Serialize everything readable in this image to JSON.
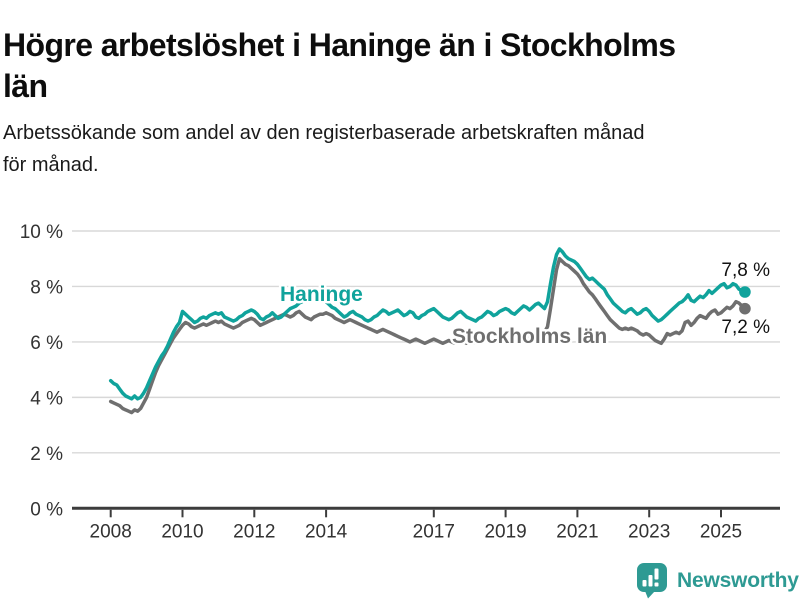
{
  "title": "Högre arbetslöshet i Haninge än i Stockholms län",
  "title_lines": [
    "Högre arbetslöshet i Haninge än i Stockholms",
    "län"
  ],
  "subtitle": "Arbetssökande som andel av den registerbaserade arbetskraften månad för månad.",
  "subtitle_lines": [
    "Arbetssökande som andel av den registerbaserade arbetskraften månad",
    "för månad."
  ],
  "footer": {
    "brand": "Newsworthy",
    "logo_icon": "newsworthy-bubble-bar-chart-icon"
  },
  "colors": {
    "haninge": "#10a39c",
    "stockholm": "#6f6f6f",
    "grid": "#d8d8d8",
    "axis": "#3c3c3c",
    "text": "#1a1a1a",
    "brand_teal": "#2e9a93"
  },
  "chart_data": {
    "type": "line",
    "x_start": "2008-01",
    "x_end": "2025-09",
    "x_interval": "monthly",
    "x_tick_years": [
      2008,
      2010,
      2012,
      2014,
      2017,
      2019,
      2021,
      2023,
      2025
    ],
    "x_tick_labels": [
      "2008",
      "2010",
      "2012",
      "2014",
      "2017",
      "2019",
      "2021",
      "2023",
      "2025"
    ],
    "y_ticks": [
      0,
      2,
      4,
      6,
      8,
      10
    ],
    "y_tick_labels": [
      "0 %",
      "2 %",
      "4 %",
      "6 %",
      "8 %",
      "10 %"
    ],
    "ylim": [
      0,
      10
    ],
    "grid": "horizontal",
    "legend_position": "inline-labels",
    "series": [
      {
        "name": "Haninge",
        "color": "#10a39c",
        "end_label": "7,8 %",
        "end_value": 7.8,
        "values": [
          4.6,
          4.5,
          4.45,
          4.3,
          4.15,
          4.05,
          4.0,
          3.95,
          4.05,
          3.95,
          4.0,
          4.15,
          4.35,
          4.6,
          4.85,
          5.1,
          5.3,
          5.5,
          5.65,
          5.85,
          6.1,
          6.35,
          6.55,
          6.7,
          7.1,
          7.0,
          6.9,
          6.8,
          6.7,
          6.75,
          6.85,
          6.9,
          6.85,
          6.95,
          7.0,
          7.05,
          7.0,
          7.05,
          6.9,
          6.85,
          6.8,
          6.75,
          6.8,
          6.9,
          6.95,
          7.05,
          7.1,
          7.15,
          7.1,
          7.0,
          6.85,
          6.8,
          6.9,
          6.95,
          7.05,
          6.95,
          6.85,
          6.9,
          7.0,
          7.1,
          7.2,
          7.25,
          7.3,
          7.4,
          7.45,
          7.55,
          7.6,
          7.65,
          7.7,
          7.65,
          7.6,
          7.5,
          7.45,
          7.35,
          7.25,
          7.2,
          7.1,
          7.0,
          6.9,
          6.95,
          7.05,
          7.1,
          7.0,
          6.95,
          6.9,
          6.8,
          6.75,
          6.8,
          6.9,
          6.95,
          7.05,
          7.15,
          7.1,
          7.0,
          7.05,
          7.1,
          7.15,
          7.05,
          6.95,
          7.0,
          7.1,
          7.05,
          6.9,
          6.85,
          6.95,
          7.0,
          7.1,
          7.15,
          7.2,
          7.1,
          7.0,
          6.9,
          6.85,
          6.8,
          6.85,
          6.95,
          7.05,
          7.1,
          7.0,
          6.9,
          6.85,
          6.8,
          6.75,
          6.85,
          6.9,
          7.0,
          7.1,
          7.05,
          6.95,
          7.0,
          7.1,
          7.15,
          7.2,
          7.15,
          7.05,
          7.0,
          7.1,
          7.2,
          7.3,
          7.25,
          7.15,
          7.25,
          7.35,
          7.4,
          7.3,
          7.2,
          7.45,
          8.1,
          8.7,
          9.15,
          9.35,
          9.25,
          9.1,
          9.0,
          8.95,
          8.9,
          8.8,
          8.65,
          8.5,
          8.35,
          8.25,
          8.3,
          8.2,
          8.1,
          8.0,
          7.9,
          7.7,
          7.55,
          7.4,
          7.3,
          7.2,
          7.1,
          7.05,
          7.15,
          7.2,
          7.1,
          7.0,
          7.05,
          7.15,
          7.2,
          7.1,
          6.95,
          6.85,
          6.75,
          6.8,
          6.9,
          7.0,
          7.1,
          7.2,
          7.3,
          7.4,
          7.45,
          7.55,
          7.7,
          7.5,
          7.45,
          7.55,
          7.65,
          7.6,
          7.7,
          7.85,
          7.75,
          7.85,
          7.95,
          8.05,
          8.1,
          7.95,
          8.0,
          8.1,
          8.05,
          7.9,
          7.85,
          7.8
        ]
      },
      {
        "name": "Stockholms län",
        "color": "#6f6f6f",
        "end_label": "7,2 %",
        "end_value": 7.2,
        "values": [
          3.85,
          3.8,
          3.75,
          3.7,
          3.6,
          3.55,
          3.5,
          3.45,
          3.55,
          3.5,
          3.6,
          3.8,
          4.0,
          4.3,
          4.6,
          4.9,
          5.15,
          5.35,
          5.55,
          5.75,
          5.95,
          6.15,
          6.3,
          6.45,
          6.6,
          6.7,
          6.65,
          6.55,
          6.5,
          6.55,
          6.6,
          6.65,
          6.6,
          6.65,
          6.7,
          6.75,
          6.7,
          6.75,
          6.65,
          6.6,
          6.55,
          6.5,
          6.55,
          6.6,
          6.7,
          6.75,
          6.8,
          6.85,
          6.8,
          6.7,
          6.6,
          6.65,
          6.7,
          6.75,
          6.8,
          6.85,
          6.9,
          6.95,
          7.0,
          6.95,
          6.9,
          6.95,
          7.05,
          7.1,
          7.0,
          6.9,
          6.85,
          6.8,
          6.9,
          6.95,
          7.0,
          7.0,
          7.05,
          7.0,
          6.95,
          6.85,
          6.8,
          6.75,
          6.7,
          6.75,
          6.8,
          6.75,
          6.7,
          6.65,
          6.6,
          6.55,
          6.5,
          6.45,
          6.4,
          6.35,
          6.4,
          6.45,
          6.4,
          6.35,
          6.3,
          6.25,
          6.2,
          6.15,
          6.1,
          6.05,
          6.0,
          6.05,
          6.1,
          6.05,
          6.0,
          5.95,
          6.0,
          6.05,
          6.1,
          6.05,
          6.0,
          5.95,
          6.0,
          6.05,
          6.0,
          5.95,
          6.0,
          6.05,
          6.0,
          5.95,
          6.0,
          5.95,
          6.0,
          6.05,
          6.0,
          6.05,
          6.1,
          6.05,
          6.0,
          6.05,
          6.1,
          6.1,
          6.1,
          6.15,
          6.2,
          6.15,
          6.2,
          6.25,
          6.3,
          6.25,
          6.2,
          6.3,
          6.35,
          6.4,
          6.4,
          6.35,
          6.55,
          7.2,
          7.9,
          8.6,
          9.0,
          8.9,
          8.8,
          8.75,
          8.65,
          8.55,
          8.45,
          8.3,
          8.1,
          7.95,
          7.8,
          7.7,
          7.55,
          7.4,
          7.25,
          7.1,
          6.95,
          6.8,
          6.7,
          6.6,
          6.5,
          6.45,
          6.5,
          6.45,
          6.5,
          6.45,
          6.4,
          6.3,
          6.25,
          6.3,
          6.25,
          6.15,
          6.05,
          6.0,
          5.95,
          6.1,
          6.3,
          6.25,
          6.3,
          6.35,
          6.3,
          6.4,
          6.7,
          6.75,
          6.6,
          6.7,
          6.85,
          6.95,
          6.9,
          6.85,
          7.0,
          7.1,
          7.15,
          7.0,
          7.05,
          7.15,
          7.25,
          7.2,
          7.3,
          7.45,
          7.4,
          7.3,
          7.2
        ]
      }
    ]
  }
}
